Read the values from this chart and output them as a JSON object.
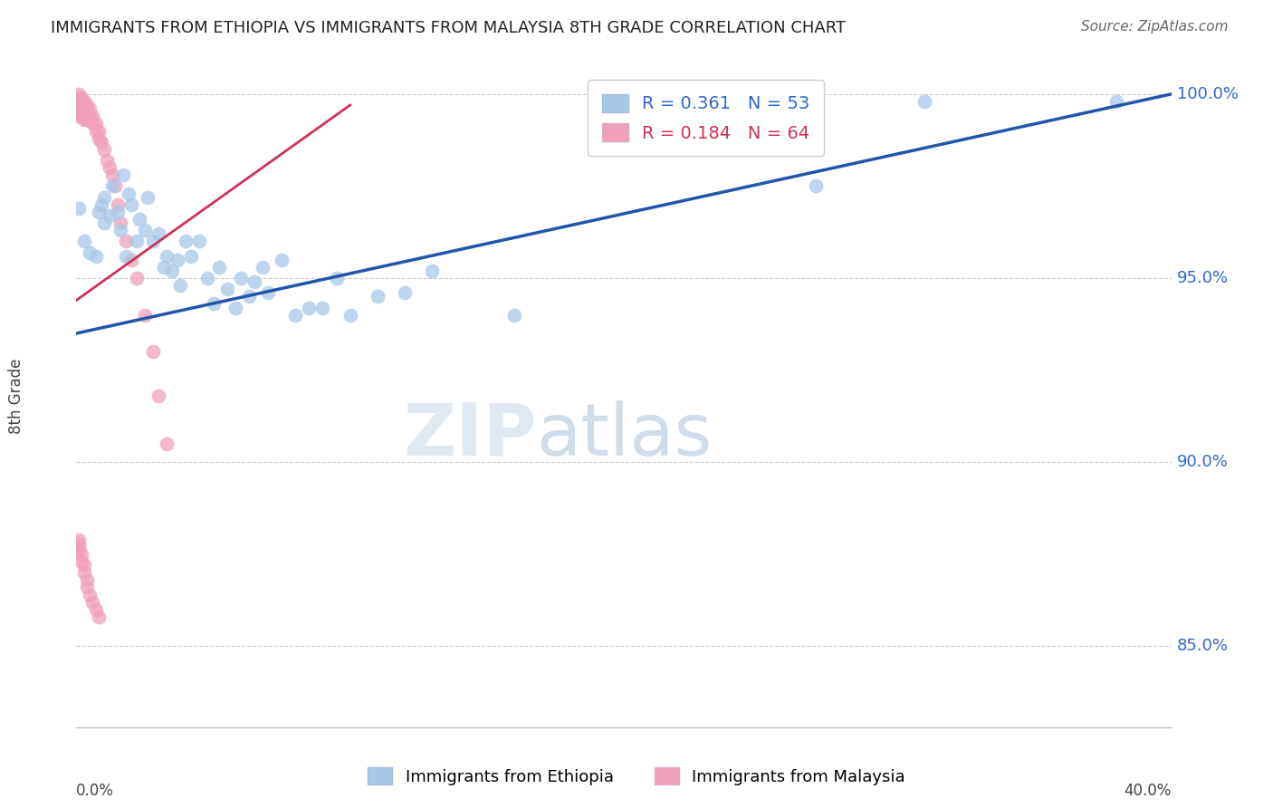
{
  "title": "IMMIGRANTS FROM ETHIOPIA VS IMMIGRANTS FROM MALAYSIA 8TH GRADE CORRELATION CHART",
  "source": "Source: ZipAtlas.com",
  "ylabel": "8th Grade",
  "xmin": 0.0,
  "xmax": 0.4,
  "ymin": 0.828,
  "ymax": 1.008,
  "yticks": [
    0.85,
    0.9,
    0.95,
    1.0
  ],
  "ytick_labels": [
    "85.0%",
    "90.0%",
    "95.0%",
    "100.0%"
  ],
  "legend_R1": "R = 0.361",
  "legend_N1": "N = 53",
  "legend_R2": "R = 0.184",
  "legend_N2": "N = 64",
  "label_ethiopia": "Immigrants from Ethiopia",
  "label_malaysia": "Immigrants from Malaysia",
  "color_ethiopia": "#a8c8e8",
  "color_malaysia": "#f0a0b8",
  "line_color_ethiopia": "#2255aa",
  "line_color_malaysia": "#cc3355",
  "watermark_zip": "ZIP",
  "watermark_atlas": "atlas",
  "blue_x": [
    0.001,
    0.003,
    0.005,
    0.007,
    0.008,
    0.009,
    0.01,
    0.01,
    0.012,
    0.013,
    0.015,
    0.016,
    0.017,
    0.018,
    0.019,
    0.02,
    0.022,
    0.023,
    0.025,
    0.026,
    0.028,
    0.03,
    0.032,
    0.033,
    0.035,
    0.037,
    0.038,
    0.04,
    0.042,
    0.045,
    0.048,
    0.05,
    0.052,
    0.055,
    0.058,
    0.06,
    0.063,
    0.065,
    0.068,
    0.07,
    0.075,
    0.08,
    0.085,
    0.09,
    0.095,
    0.1,
    0.11,
    0.12,
    0.13,
    0.16,
    0.27,
    0.31,
    0.38
  ],
  "blue_y": [
    0.969,
    0.96,
    0.957,
    0.956,
    0.968,
    0.97,
    0.972,
    0.965,
    0.967,
    0.975,
    0.968,
    0.963,
    0.978,
    0.956,
    0.973,
    0.97,
    0.96,
    0.966,
    0.963,
    0.972,
    0.96,
    0.962,
    0.953,
    0.956,
    0.952,
    0.955,
    0.948,
    0.96,
    0.956,
    0.96,
    0.95,
    0.943,
    0.953,
    0.947,
    0.942,
    0.95,
    0.945,
    0.949,
    0.953,
    0.946,
    0.955,
    0.94,
    0.942,
    0.942,
    0.95,
    0.94,
    0.945,
    0.946,
    0.952,
    0.94,
    0.975,
    0.998,
    0.998
  ],
  "pink_x": [
    0.001,
    0.001,
    0.001,
    0.001,
    0.001,
    0.001,
    0.001,
    0.001,
    0.001,
    0.001,
    0.002,
    0.002,
    0.002,
    0.002,
    0.002,
    0.002,
    0.003,
    0.003,
    0.003,
    0.003,
    0.003,
    0.003,
    0.004,
    0.004,
    0.004,
    0.004,
    0.005,
    0.005,
    0.005,
    0.006,
    0.006,
    0.007,
    0.007,
    0.008,
    0.008,
    0.009,
    0.01,
    0.011,
    0.012,
    0.013,
    0.014,
    0.015,
    0.016,
    0.018,
    0.02,
    0.022,
    0.025,
    0.028,
    0.03,
    0.033,
    0.001,
    0.001,
    0.001,
    0.001,
    0.002,
    0.002,
    0.003,
    0.003,
    0.004,
    0.004,
    0.005,
    0.006,
    0.007,
    0.008
  ],
  "pink_y": [
    1.0,
    0.999,
    0.998,
    0.998,
    0.997,
    0.997,
    0.996,
    0.996,
    0.995,
    0.994,
    0.999,
    0.998,
    0.997,
    0.996,
    0.995,
    0.994,
    0.998,
    0.997,
    0.996,
    0.995,
    0.994,
    0.993,
    0.997,
    0.996,
    0.995,
    0.993,
    0.996,
    0.994,
    0.993,
    0.994,
    0.992,
    0.992,
    0.99,
    0.99,
    0.988,
    0.987,
    0.985,
    0.982,
    0.98,
    0.978,
    0.975,
    0.97,
    0.965,
    0.96,
    0.955,
    0.95,
    0.94,
    0.93,
    0.918,
    0.905,
    0.879,
    0.878,
    0.877,
    0.876,
    0.875,
    0.873,
    0.872,
    0.87,
    0.868,
    0.866,
    0.864,
    0.862,
    0.86,
    0.858
  ],
  "blue_line_x0": 0.0,
  "blue_line_y0": 0.935,
  "blue_line_x1": 0.4,
  "blue_line_y1": 1.0,
  "pink_line_x0": 0.0,
  "pink_line_y0": 0.944,
  "pink_line_x1": 0.1,
  "pink_line_y1": 0.997
}
